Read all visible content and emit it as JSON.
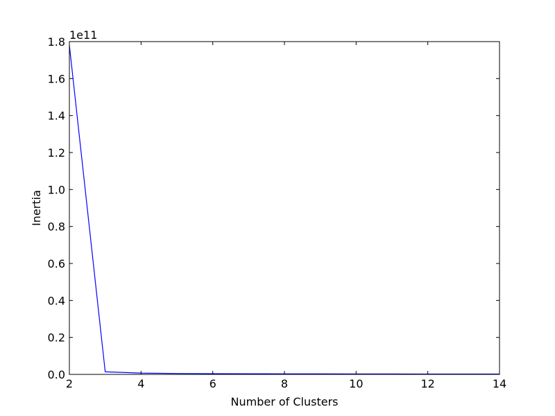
{
  "chart_data": {
    "type": "line",
    "title": "",
    "xlabel": "Number of Clusters",
    "ylabel": "Inertia",
    "y_exponent_label": "1e11",
    "xlim": [
      2,
      14
    ],
    "ylim": [
      0.0,
      1.8
    ],
    "x_ticks": [
      2,
      4,
      6,
      8,
      10,
      12,
      14
    ],
    "x_tick_labels": [
      "2",
      "4",
      "6",
      "8",
      "10",
      "12",
      "14"
    ],
    "y_ticks": [
      0.0,
      0.2,
      0.4,
      0.6,
      0.8,
      1.0,
      1.2,
      1.4,
      1.6,
      1.8
    ],
    "y_tick_labels": [
      "0.0",
      "0.2",
      "0.4",
      "0.6",
      "0.8",
      "1.0",
      "1.2",
      "1.4",
      "1.6",
      "1.8"
    ],
    "grid": false,
    "legend": "none",
    "series": [
      {
        "name": "Inertia",
        "color": "#0000ff",
        "x": [
          2,
          3,
          4,
          5,
          6,
          7,
          8,
          9,
          10,
          11,
          12,
          13,
          14
        ],
        "values": [
          1.78,
          0.014,
          0.007,
          0.005,
          0.004,
          0.0035,
          0.003,
          0.0027,
          0.0025,
          0.0023,
          0.0021,
          0.002,
          0.0018
        ]
      }
    ]
  }
}
